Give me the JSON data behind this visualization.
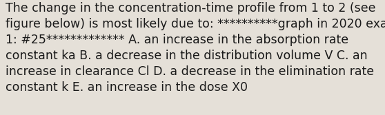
{
  "line1": "The change in the concentration-time profile from 1 to 2 (see",
  "line2": "figure below) is most likely due to: **********graph in 2020 exam",
  "line3": "1: #25************* A. an increase in the absorption rate",
  "line4": "constant ka B. a decrease in the distribution volume V C. an",
  "line5": "increase in clearance Cl D. a decrease in the elimination rate",
  "line6": "constant k E. an increase in the dose X0",
  "font_size": 12.5,
  "font_color": "#1a1a1a",
  "background_color": "#e5e0d8",
  "fig_width": 5.58,
  "fig_height": 1.67,
  "dpi": 100
}
